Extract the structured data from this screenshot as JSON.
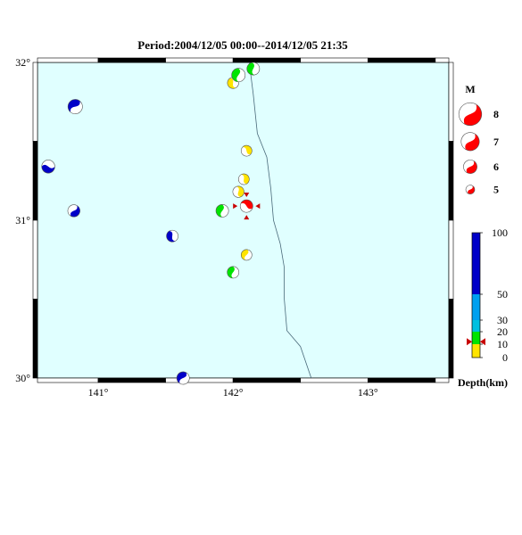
{
  "title": "Period:2004/12/05 00:00--2014/12/05 21:35",
  "map": {
    "lon_range": [
      140.55,
      143.6
    ],
    "lat_range": [
      30.0,
      32.0
    ],
    "lat_ticks": [
      {
        "value": 32,
        "label": "32°"
      },
      {
        "value": 31,
        "label": "31°"
      },
      {
        "value": 30,
        "label": "30°"
      }
    ],
    "lon_ticks": [
      {
        "value": 141,
        "label": "141°"
      },
      {
        "value": 142,
        "label": "142°"
      },
      {
        "value": 143,
        "label": "143°"
      }
    ],
    "trench_line": [
      [
        142.12,
        32.0
      ],
      [
        142.15,
        31.8
      ],
      [
        142.18,
        31.55
      ],
      [
        142.25,
        31.4
      ],
      [
        142.28,
        31.2
      ],
      [
        142.3,
        31.0
      ],
      [
        142.35,
        30.85
      ],
      [
        142.38,
        30.7
      ],
      [
        142.38,
        30.5
      ],
      [
        142.4,
        30.3
      ],
      [
        142.5,
        30.2
      ],
      [
        142.58,
        30.0
      ]
    ]
  },
  "events": [
    {
      "lon": 140.83,
      "lat": 31.72,
      "mag": 6.2,
      "color": "#0000c8"
    },
    {
      "lon": 140.63,
      "lat": 31.34,
      "mag": 5.9,
      "color": "#0000c8"
    },
    {
      "lon": 140.82,
      "lat": 31.06,
      "mag": 5.7,
      "color": "#0000c8"
    },
    {
      "lon": 141.55,
      "lat": 30.9,
      "mag": 5.6,
      "color": "#0000c8"
    },
    {
      "lon": 141.63,
      "lat": 30.0,
      "mag": 5.8,
      "color": "#0000c8"
    },
    {
      "lon": 142.0,
      "lat": 31.87,
      "mag": 5.5,
      "color": "#ffe400"
    },
    {
      "lon": 142.04,
      "lat": 31.92,
      "mag": 6.0,
      "color": "#00e400"
    },
    {
      "lon": 142.15,
      "lat": 31.96,
      "mag": 5.8,
      "color": "#00e400"
    },
    {
      "lon": 142.1,
      "lat": 31.44,
      "mag": 5.4,
      "color": "#ffe400"
    },
    {
      "lon": 142.08,
      "lat": 31.26,
      "mag": 5.4,
      "color": "#ffe400"
    },
    {
      "lon": 142.04,
      "lat": 31.18,
      "mag": 5.5,
      "color": "#ffe400"
    },
    {
      "lon": 141.92,
      "lat": 31.06,
      "mag": 5.8,
      "color": "#00e400"
    },
    {
      "lon": 142.1,
      "lat": 31.09,
      "mag": 5.8,
      "color": "#ff0000",
      "selected": true
    },
    {
      "lon": 142.1,
      "lat": 30.78,
      "mag": 5.4,
      "color": "#ffe400"
    },
    {
      "lon": 142.0,
      "lat": 30.67,
      "mag": 5.6,
      "color": "#00e400"
    }
  ],
  "legend": {
    "magnitude_title": "M",
    "magnitudes": [
      {
        "value": 8,
        "label": "8"
      },
      {
        "value": 7,
        "label": "7"
      },
      {
        "value": 6,
        "label": "6"
      },
      {
        "value": 5,
        "label": "5"
      }
    ],
    "depth_ticks": [
      {
        "value": 100,
        "label": "100"
      },
      {
        "value": 50,
        "label": "50"
      },
      {
        "value": 30,
        "label": "30"
      },
      {
        "value": 20,
        "label": "20"
      },
      {
        "value": 10,
        "label": "10"
      },
      {
        "value": 0,
        "label": "0"
      }
    ],
    "depth_segments": [
      {
        "from": 0,
        "to": 10,
        "color": "#ffe400"
      },
      {
        "from": 10,
        "to": 20,
        "color": "#00e400"
      },
      {
        "from": 20,
        "to": 30,
        "color": "#00c0e0"
      },
      {
        "from": 30,
        "to": 50,
        "color": "#00a0f0"
      },
      {
        "from": 50,
        "to": 100,
        "color": "#0000c8"
      }
    ],
    "depth_marker": 12,
    "depth_title": "Depth(km)"
  },
  "colors": {
    "ocean": "#e0ffff",
    "marker_red": "#c80000",
    "trench_line": "#4a6a7a"
  }
}
